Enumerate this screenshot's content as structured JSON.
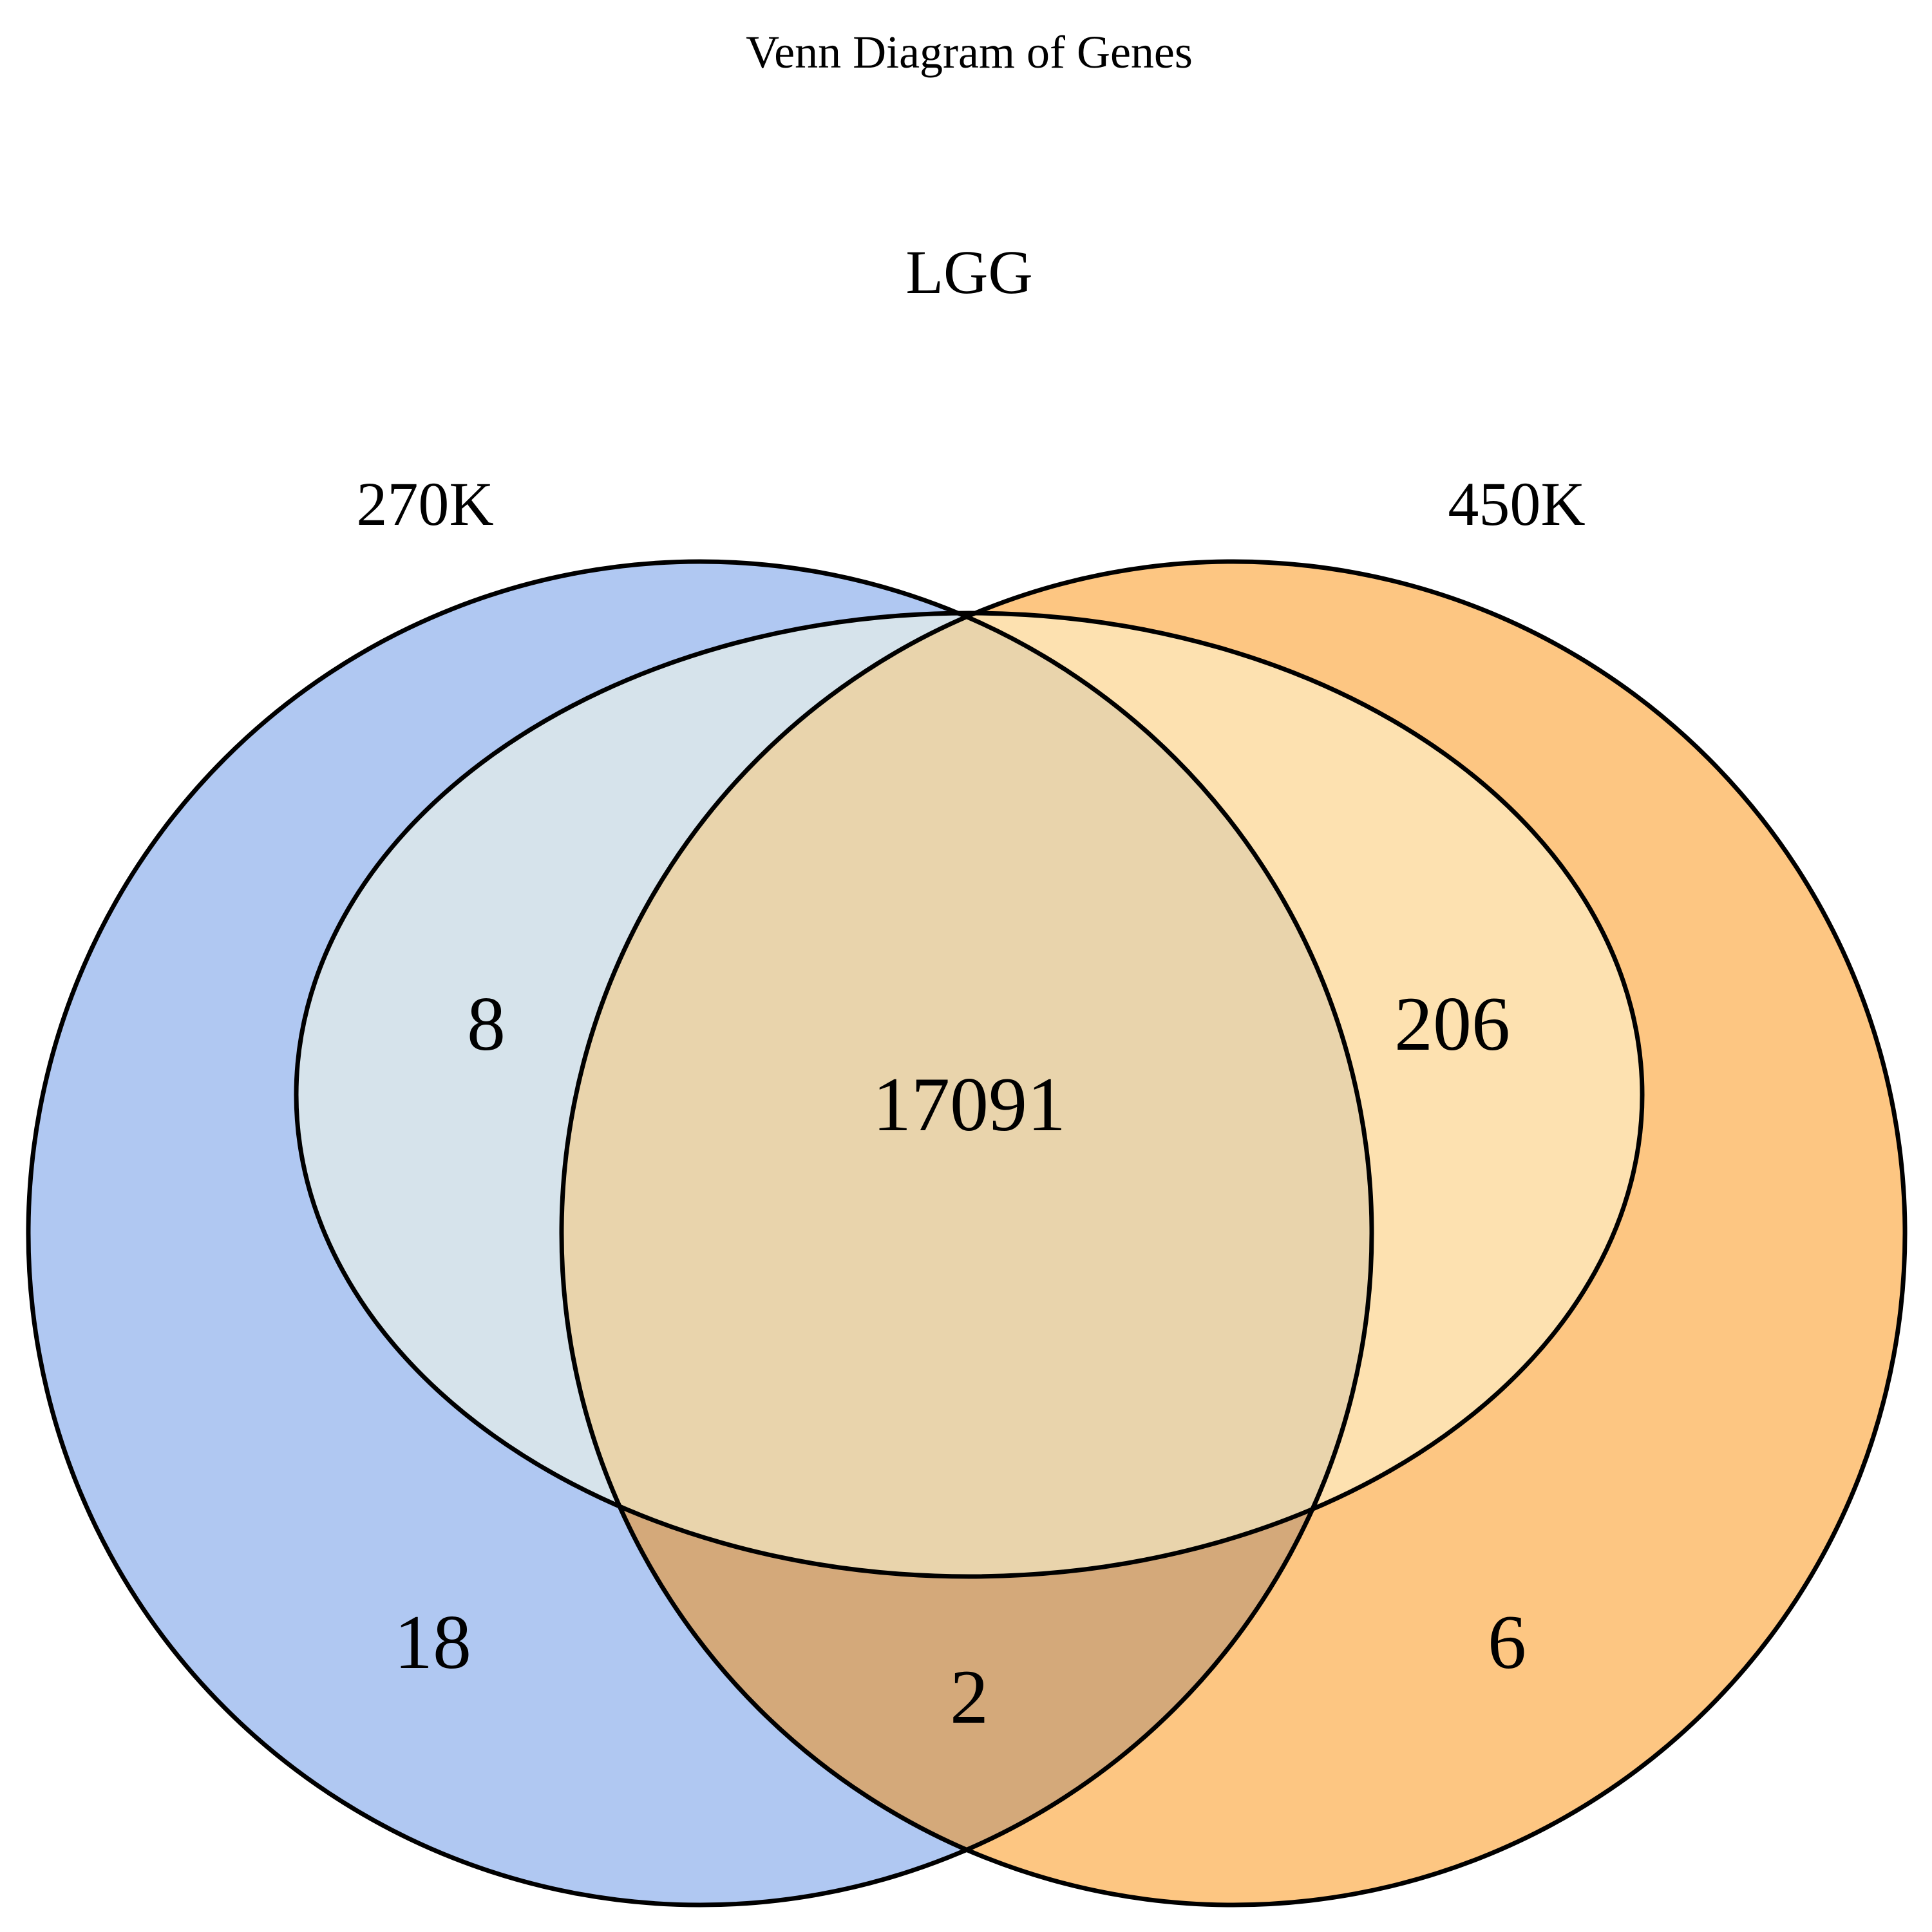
{
  "title": "Venn Diagram of Genes",
  "sets": [
    {
      "id": "a",
      "label": "270K",
      "color": "#6495ED"
    },
    {
      "id": "b",
      "label": "450K",
      "color": "#FF9900"
    },
    {
      "id": "c",
      "label": "LGG",
      "color": "#FFEBCD"
    }
  ],
  "regions": {
    "a_only": "18",
    "a_c": "8",
    "a_b_c": "17091",
    "b_c": "206",
    "b_only": "6",
    "a_b": "2"
  },
  "colors": {
    "set_a": "#B0C8F2",
    "set_b": "#FDC682",
    "set_c_over_a": "#D6E3EB",
    "set_c_over_b": "#FDE1B0",
    "abc": "#E9D4AC",
    "ab": "#D4A97A",
    "outline": "#000000"
  }
}
